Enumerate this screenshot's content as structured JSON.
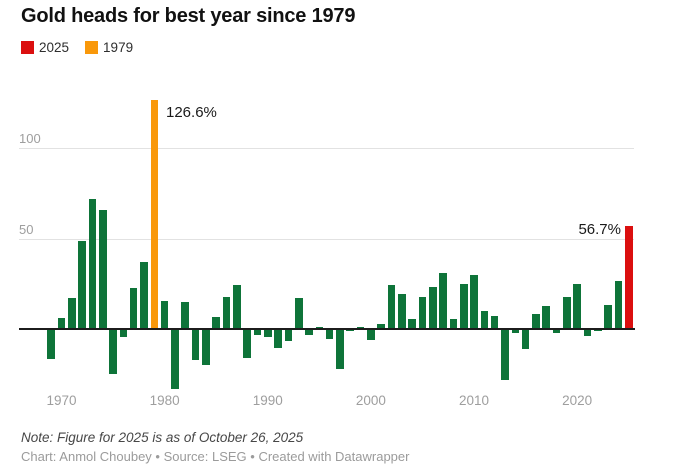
{
  "title": "Gold heads for best year since 1979",
  "legend": [
    {
      "label": "2025",
      "color": "#db0f0f"
    },
    {
      "label": "1979",
      "color": "#f9980a"
    }
  ],
  "annotations": {
    "peak_1979": "126.6%",
    "latest_2025": "56.7%"
  },
  "footer": {
    "note": "Note: Figure for 2025 is as of October 26, 2025",
    "credit": "Chart: Anmol Choubey • Source: LSEG • Created with Datawrapper"
  },
  "colors": {
    "bar_default": "#0e7439",
    "bar_1979": "#f9980a",
    "bar_2025": "#db0f0f",
    "axis": "#1c1c1c",
    "gridline": "#e2e2e2",
    "tick_label": "#9e9e9e"
  },
  "chart_data": {
    "type": "bar",
    "title": "Gold heads for best year since 1979",
    "xlabel": "",
    "ylabel": "",
    "unit": "%",
    "x": [
      1969,
      1970,
      1971,
      1972,
      1973,
      1974,
      1975,
      1976,
      1977,
      1978,
      1979,
      1980,
      1981,
      1982,
      1983,
      1984,
      1985,
      1986,
      1987,
      1988,
      1989,
      1990,
      1991,
      1992,
      1993,
      1994,
      1995,
      1996,
      1997,
      1998,
      1999,
      2000,
      2001,
      2002,
      2003,
      2004,
      2005,
      2006,
      2007,
      2008,
      2009,
      2010,
      2011,
      2012,
      2013,
      2014,
      2015,
      2016,
      2017,
      2018,
      2019,
      2020,
      2021,
      2022,
      2023,
      2024,
      2025
    ],
    "values": [
      -16.1,
      6.3,
      17.4,
      48.7,
      72.0,
      66.0,
      -24.2,
      -4.0,
      22.6,
      37.0,
      126.6,
      15.2,
      -32.6,
      14.9,
      -16.3,
      -19.2,
      6.9,
      17.5,
      24.3,
      -15.7,
      -2.5,
      -3.7,
      -10.1,
      -5.9,
      17.3,
      -2.7,
      1.2,
      -5.0,
      -21.8,
      -0.8,
      0.9,
      -5.5,
      2.8,
      24.4,
      19.5,
      5.5,
      17.8,
      23.0,
      30.8,
      5.6,
      24.8,
      29.6,
      10.1,
      7.0,
      -27.8,
      -1.9,
      -10.4,
      8.1,
      12.6,
      -1.9,
      17.8,
      24.9,
      -3.5,
      -0.3,
      13.1,
      26.7,
      56.7
    ],
    "highlighted_years": {
      "1979": "orange",
      "2025": "red"
    },
    "data_labels": {
      "1979": "126.6%",
      "2025": "56.7%"
    },
    "y_ticks": [
      50,
      100
    ],
    "x_ticks": [
      1970,
      1980,
      1990,
      2000,
      2010,
      2020
    ],
    "ylim": [
      -35,
      130
    ],
    "grid": "horizontal",
    "legend_position": "top-left"
  }
}
